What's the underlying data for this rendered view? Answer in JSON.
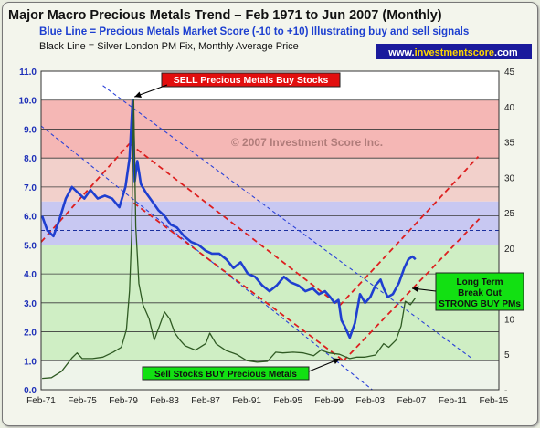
{
  "chart_data": {
    "type": "line",
    "title": "Major Macro Precious Metals Trend – Feb 1971 to Jun 2007 (Monthly)",
    "subtitle_blue": "Blue Line = Precious Metals Market Score (-10 to +10) Illustrating buy and sell signals",
    "subtitle_black": "Black Line = Silver London PM Fix, Monthly Average Price",
    "url_badge": {
      "prefix": "www.",
      "brand": "investmentscore",
      "suffix": ".com"
    },
    "watermark": "© 2007 Investment Score Inc.",
    "x_range": [
      1971.0,
      2015.5
    ],
    "x_ticks": [
      "Feb-71",
      "Feb-75",
      "Feb-79",
      "Feb-83",
      "Feb-87",
      "Feb-91",
      "Feb-95",
      "Feb-99",
      "Feb-03",
      "Feb-07",
      "Feb-11",
      "Feb-15"
    ],
    "x_tick_years": [
      1971,
      1975,
      1979,
      1983,
      1987,
      1991,
      1995,
      1999,
      2003,
      2007,
      2011,
      2015
    ],
    "y_left": {
      "range": [
        0,
        11
      ],
      "ticks": [
        "0.0",
        "1.0",
        "2.0",
        "3.0",
        "4.0",
        "5.0",
        "6.0",
        "7.0",
        "8.0",
        "9.0",
        "10.0",
        "11.0"
      ]
    },
    "y_right": {
      "range": [
        0,
        45
      ],
      "ticks": [
        "-",
        "5",
        "10",
        "15",
        "20",
        "25",
        "30",
        "35",
        "40",
        "45"
      ],
      "tick_values": [
        0,
        5,
        10,
        15,
        20,
        25,
        30,
        35,
        40,
        45
      ]
    },
    "bands": [
      {
        "from": 8.0,
        "to": 10.0,
        "color": "#f5b7b5"
      },
      {
        "from": 6.5,
        "to": 8.0,
        "color": "#f2d0cb"
      },
      {
        "from": 5.0,
        "to": 6.5,
        "color": "#c8c8f2"
      },
      {
        "from": 1.0,
        "to": 5.0,
        "color": "#cfeec4"
      },
      {
        "from": 0.0,
        "to": 1.0,
        "color": "#eef4ea"
      }
    ],
    "reference_line_y": 5.5,
    "series": [
      {
        "color": "#1f3fd0",
        "axis": "left",
        "x": [
          1971.1,
          1971.6,
          1972.2,
          1972.8,
          1973.4,
          1974.0,
          1974.6,
          1975.2,
          1975.8,
          1976.5,
          1977.2,
          1977.9,
          1978.6,
          1979.2,
          1979.6,
          1979.9,
          1980.1,
          1980.35,
          1980.7,
          1981.2,
          1981.8,
          1982.4,
          1983.0,
          1983.6,
          1984.2,
          1984.9,
          1985.6,
          1986.3,
          1987.0,
          1987.6,
          1988.3,
          1989.0,
          1989.7,
          1990.4,
          1991.1,
          1991.8,
          1992.5,
          1993.2,
          1993.9,
          1994.6,
          1995.3,
          1996.0,
          1996.7,
          1997.4,
          1998.0,
          1998.6,
          1999.1,
          1999.5,
          1999.9,
          2000.2,
          2000.5,
          2001.0,
          2001.5,
          2002.0,
          2002.5,
          2003.0,
          2003.5,
          2004.0,
          2004.3,
          2004.7,
          2005.2,
          2005.8,
          2006.3,
          2006.7,
          2007.1,
          2007.4
        ],
        "y": [
          6.0,
          5.5,
          5.3,
          5.9,
          6.6,
          7.0,
          6.8,
          6.6,
          6.9,
          6.6,
          6.7,
          6.6,
          6.3,
          7.0,
          8.0,
          10.0,
          7.2,
          7.9,
          7.1,
          6.8,
          6.5,
          6.2,
          6.0,
          5.7,
          5.6,
          5.3,
          5.1,
          5.0,
          4.8,
          4.7,
          4.7,
          4.5,
          4.2,
          4.4,
          4.0,
          3.9,
          3.6,
          3.4,
          3.6,
          3.9,
          3.7,
          3.6,
          3.4,
          3.5,
          3.3,
          3.4,
          3.2,
          3.0,
          3.1,
          2.4,
          2.2,
          1.8,
          2.3,
          3.3,
          3.0,
          3.2,
          3.6,
          3.8,
          3.5,
          3.2,
          3.3,
          3.7,
          4.2,
          4.5,
          4.6,
          4.5
        ]
      },
      {
        "color": "#2f5a23",
        "axis": "right",
        "x": [
          1971.1,
          1972.0,
          1973.0,
          1974.0,
          1974.5,
          1975.0,
          1976.0,
          1977.0,
          1978.0,
          1978.8,
          1979.3,
          1979.6,
          1979.8,
          1980.0,
          1980.2,
          1980.5,
          1980.9,
          1981.5,
          1982.0,
          1982.5,
          1983.0,
          1983.5,
          1984.0,
          1984.5,
          1985.0,
          1986.0,
          1987.0,
          1987.4,
          1988.0,
          1989.0,
          1990.0,
          1991.0,
          1992.0,
          1993.0,
          1993.8,
          1994.5,
          1995.5,
          1996.5,
          1997.5,
          1998.2,
          1999.0,
          2000.0,
          2001.0,
          2001.7,
          2002.5,
          2003.5,
          2004.3,
          2004.8,
          2005.5,
          2006.0,
          2006.4,
          2006.9,
          2007.4
        ],
        "y": [
          1.6,
          1.7,
          2.6,
          4.5,
          5.2,
          4.4,
          4.4,
          4.6,
          5.3,
          6.0,
          8.5,
          14.0,
          22.0,
          41.0,
          23.0,
          15.0,
          12.0,
          10.0,
          7.0,
          9.0,
          11.0,
          10.0,
          8.0,
          7.0,
          6.2,
          5.6,
          6.5,
          8.0,
          6.5,
          5.5,
          5.0,
          4.1,
          3.9,
          4.0,
          5.3,
          5.2,
          5.3,
          5.2,
          4.8,
          5.6,
          5.2,
          5.0,
          4.4,
          4.6,
          4.6,
          4.9,
          6.5,
          6.0,
          7.0,
          9.0,
          12.5,
          12.0,
          13.0
        ]
      }
    ],
    "annotations": [
      {
        "text": "SELL Precious Metals Buy Stocks",
        "at": [
          1979.9,
          10.05
        ]
      },
      {
        "text": "Sell Stocks BUY Precious Metals",
        "at": [
          2000.4,
          1.1
        ]
      },
      {
        "lines": [
          "Long Term",
          "Break Out",
          "STRONG BUY PMs"
        ],
        "at": [
          2006.8,
          3.5
        ]
      }
    ]
  }
}
